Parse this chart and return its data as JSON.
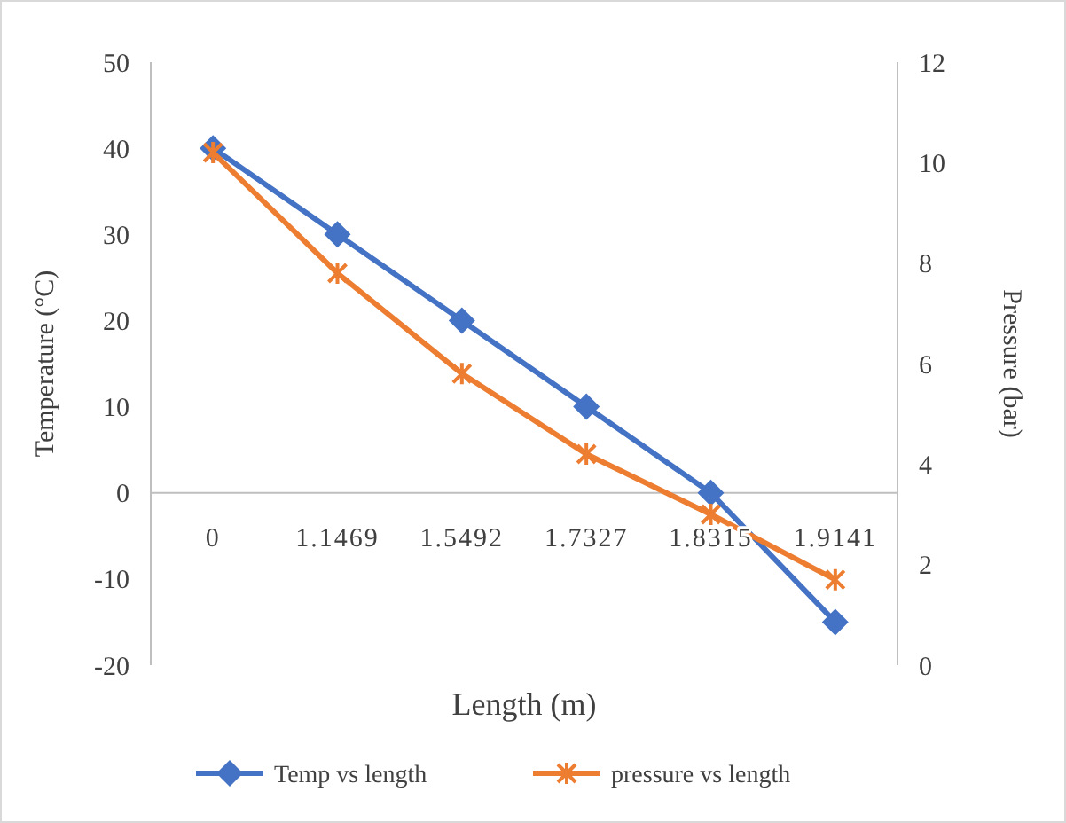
{
  "chart_data": {
    "type": "line",
    "xlabel": "Length  (m)",
    "ylabel": "Temperature  (°C)",
    "y2label": "Pressure  (bar)",
    "categories": [
      "0",
      "1.1469",
      "1.5492",
      "1.7327",
      "1.8315",
      "1.9141"
    ],
    "series": [
      {
        "name": "Temp vs length",
        "color": "#4472c4",
        "values": [
          40,
          30,
          20,
          10,
          0,
          -15
        ],
        "marker": "diamond"
      },
      {
        "name": "pressure vs length",
        "color": "#ed7d31",
        "values": [
          10.2,
          7.8,
          5.8,
          4.2,
          3.0,
          1.7
        ],
        "axis": "y2",
        "marker": "cross"
      }
    ],
    "ylim": [
      -20,
      50
    ],
    "yticks": [
      -20,
      -10,
      0,
      10,
      20,
      30,
      40,
      50
    ],
    "y2lim": [
      0,
      12
    ],
    "y2ticks": [
      0,
      2,
      4,
      6,
      8,
      10,
      12
    ],
    "grid": false,
    "legend": "bottom",
    "line_style": "solid"
  }
}
